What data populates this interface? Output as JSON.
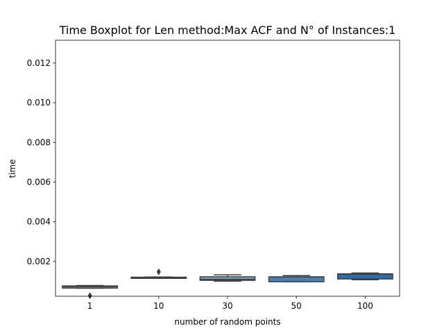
{
  "chart_data": {
    "type": "boxplot",
    "title": "Time Boxplot for Len method:Max ACF and N° of Instances:1",
    "xlabel": "number of random points",
    "ylabel": "time",
    "ylim": [
      0.00025,
      0.01315
    ],
    "yticks": [
      0.002,
      0.004,
      0.006,
      0.008,
      0.01,
      0.012
    ],
    "ytick_labels": [
      "0.002",
      "0.004",
      "0.006",
      "0.008",
      "0.010",
      "0.012"
    ],
    "grid": false,
    "categories": [
      "1",
      "10",
      "30",
      "50",
      "100"
    ],
    "boxes": [
      {
        "category": "1",
        "q1": 0.00066,
        "median": 0.00072,
        "q3": 0.00077,
        "whisker_low": 0.00065,
        "whisker_high": 0.00079,
        "outliers": [
          0.00028
        ],
        "color": "#eaeaf2"
      },
      {
        "category": "10",
        "q1": 0.00115,
        "median": 0.00118,
        "q3": 0.00121,
        "whisker_low": 0.00115,
        "whisker_high": 0.00122,
        "outliers": [
          0.00148
        ],
        "color": "#b4c8dc"
      },
      {
        "category": "30",
        "q1": 0.00105,
        "median": 0.0011,
        "q3": 0.00123,
        "whisker_low": 0.00101,
        "whisker_high": 0.00133,
        "outliers": [],
        "color": "#7fa3c7"
      },
      {
        "category": "50",
        "q1": 0.00098,
        "median": 0.00122,
        "q3": 0.00123,
        "whisker_low": 0.00098,
        "whisker_high": 0.00129,
        "outliers": [],
        "color": "#4a7fb8"
      },
      {
        "category": "100",
        "q1": 0.00112,
        "median": 0.00136,
        "q3": 0.00138,
        "whisker_low": 0.00108,
        "whisker_high": 0.00142,
        "outliers": [],
        "color": "#2f6ba8"
      }
    ]
  }
}
